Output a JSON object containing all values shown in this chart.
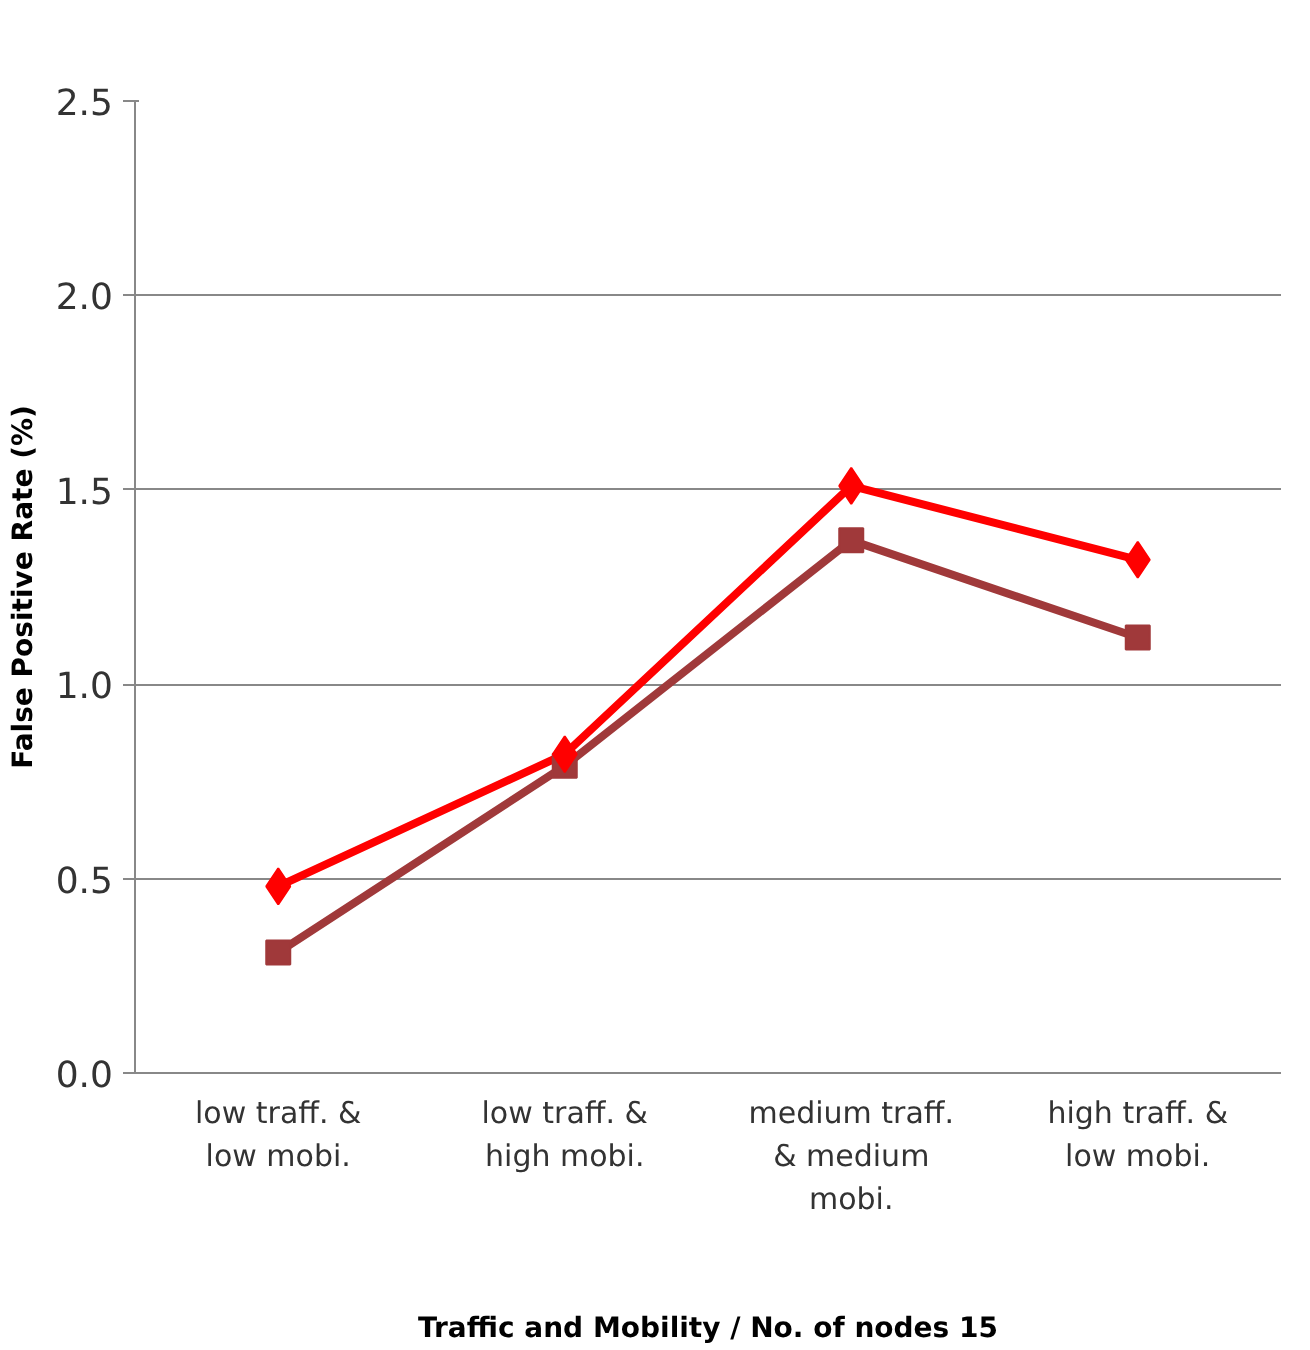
{
  "chart_data": {
    "type": "line",
    "categories": [
      "low traff. &\nlow mobi.",
      "low traff. &\nhigh mobi.",
      "medium traff.\n& medium\nmobi.",
      "high traff. &\nlow mobi."
    ],
    "series": [
      {
        "color": "#ff0000",
        "marker": "diamond",
        "values": [
          0.48,
          0.82,
          1.51,
          1.32
        ]
      },
      {
        "color": "#a0393a",
        "marker": "square",
        "values": [
          0.31,
          0.79,
          1.37,
          1.12
        ]
      }
    ],
    "xlabel": "Traffic and Mobility / No. of nodes 15",
    "ylabel": "False Positive Rate (%)",
    "ylim": [
      0,
      2.5
    ],
    "yticks": [
      {
        "value": 0,
        "label": "0.0"
      },
      {
        "value": 0.5,
        "label": "0.5"
      },
      {
        "value": 1,
        "label": "1.0"
      },
      {
        "value": 1.5,
        "label": "1.5"
      },
      {
        "value": 2,
        "label": "2.0"
      },
      {
        "value": 2.5,
        "label": "2.5"
      }
    ],
    "grid": "y",
    "line_style": "solid"
  }
}
